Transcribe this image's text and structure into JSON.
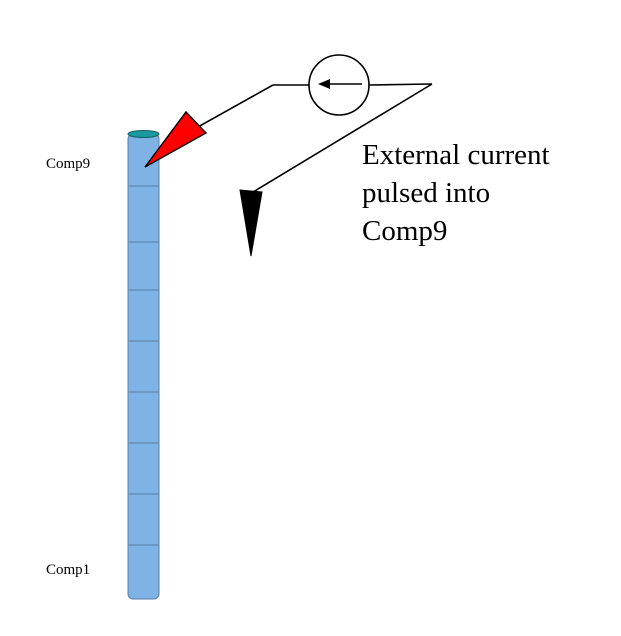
{
  "labels": {
    "top_compartment": "Comp9",
    "bottom_compartment": "Comp1"
  },
  "caption": {
    "lines": [
      "External current",
      "pulsed into",
      "Comp9"
    ]
  },
  "cable": {
    "compartment_count": 9,
    "fill_color": "#7fb2e5",
    "cap_color": "#1a9aa0",
    "segment_line_color": "#5a7fa8"
  },
  "electrode": {
    "injection_tip_color": "#ff0000",
    "ground_tip_color": "#000000",
    "source_symbol": "current-source-arrow-left-icon"
  }
}
